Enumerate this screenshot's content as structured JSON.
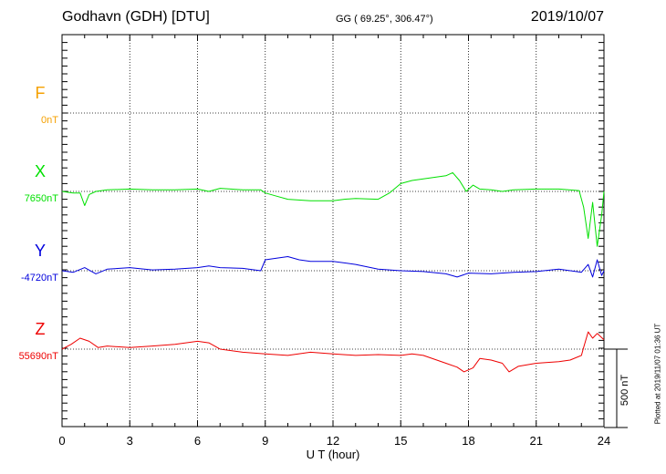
{
  "header": {
    "station": "Godhavn (GDH)  [DTU]",
    "coords": "GG ( 69.25°, 306.47°)",
    "date": "2019/10/07"
  },
  "colors": {
    "F": "#f5a000",
    "X": "#00e000",
    "Y": "#0000dd",
    "Z": "#ee0000"
  },
  "components": {
    "F": {
      "letter": "F",
      "base": "0nT"
    },
    "X": {
      "letter": "X",
      "base": "7650nT"
    },
    "Y": {
      "letter": "Y",
      "base": "-4720nT"
    },
    "Z": {
      "letter": "Z",
      "base": "55690nT"
    }
  },
  "scale_label": "500 nT",
  "plotted_note": "Plotted at 2019/11/07 01:36 UT",
  "chart_data": {
    "type": "line",
    "xlabel": "U T (hour)",
    "xlim": [
      0,
      24
    ],
    "xticks": [
      0,
      3,
      6,
      9,
      12,
      15,
      18,
      21,
      24
    ],
    "grid": true,
    "units": "nT",
    "offset_step_nT": 500,
    "series": [
      {
        "name": "F",
        "baseline_nT": 0,
        "x": [],
        "y": []
      },
      {
        "name": "X",
        "baseline_nT": 7650,
        "x": [
          0,
          0.5,
          0.8,
          1.0,
          1.2,
          1.5,
          2.0,
          3.0,
          4.0,
          5.0,
          6.0,
          6.5,
          7.0,
          8.0,
          8.8,
          9.0,
          9.5,
          10.0,
          11.0,
          12.0,
          12.5,
          13.0,
          14.0,
          14.5,
          15.0,
          15.5,
          16.0,
          16.5,
          17.0,
          17.3,
          17.6,
          17.9,
          18.2,
          18.5,
          19.0,
          19.5,
          20.0,
          21.0,
          22.0,
          22.9,
          23.1,
          23.3,
          23.5,
          23.7,
          23.9,
          24.0
        ],
        "y": [
          7650,
          7640,
          7640,
          7560,
          7630,
          7650,
          7660,
          7665,
          7660,
          7660,
          7665,
          7650,
          7670,
          7660,
          7660,
          7640,
          7620,
          7600,
          7590,
          7590,
          7600,
          7605,
          7600,
          7640,
          7700,
          7720,
          7730,
          7740,
          7750,
          7770,
          7720,
          7650,
          7690,
          7665,
          7660,
          7650,
          7660,
          7665,
          7665,
          7655,
          7550,
          7350,
          7580,
          7300,
          7500,
          7650
        ]
      },
      {
        "name": "Y",
        "baseline_nT": -4720,
        "x": [
          0,
          0.5,
          1.0,
          1.5,
          2.0,
          3.0,
          4.0,
          5.0,
          6.0,
          6.5,
          7.0,
          8.0,
          8.8,
          9.0,
          9.5,
          10.0,
          10.5,
          11.0,
          12.0,
          13.0,
          14.0,
          15.0,
          16.0,
          17.0,
          17.5,
          18.0,
          19.0,
          20.0,
          21.0,
          22.0,
          23.0,
          23.3,
          23.5,
          23.7,
          23.9,
          24.0
        ],
        "y": [
          -4720,
          -4730,
          -4700,
          -4740,
          -4710,
          -4700,
          -4715,
          -4710,
          -4700,
          -4690,
          -4700,
          -4705,
          -4720,
          -4650,
          -4640,
          -4630,
          -4650,
          -4660,
          -4660,
          -4680,
          -4710,
          -4720,
          -4725,
          -4740,
          -4760,
          -4735,
          -4740,
          -4730,
          -4725,
          -4710,
          -4730,
          -4680,
          -4760,
          -4650,
          -4750,
          -4720
        ]
      },
      {
        "name": "Z",
        "baseline_nT": 55690,
        "x": [
          0,
          0.4,
          0.8,
          1.2,
          1.6,
          2.0,
          3.0,
          4.0,
          5.0,
          6.0,
          6.5,
          7.0,
          8.0,
          9.0,
          10.0,
          11.0,
          12.0,
          13.0,
          14.0,
          15.0,
          15.5,
          16.0,
          17.0,
          17.5,
          17.8,
          18.2,
          18.5,
          19.0,
          19.5,
          19.8,
          20.2,
          21.0,
          22.0,
          22.5,
          23.0,
          23.1,
          23.3,
          23.5,
          23.7,
          24.0
        ],
        "y": [
          55690,
          55720,
          55760,
          55740,
          55700,
          55710,
          55700,
          55710,
          55720,
          55740,
          55730,
          55690,
          55670,
          55660,
          55650,
          55670,
          55660,
          55650,
          55655,
          55650,
          55660,
          55650,
          55600,
          55575,
          55545,
          55570,
          55630,
          55620,
          55600,
          55545,
          55580,
          55600,
          55610,
          55620,
          55650,
          55700,
          55800,
          55760,
          55790,
          55750
        ]
      }
    ]
  }
}
